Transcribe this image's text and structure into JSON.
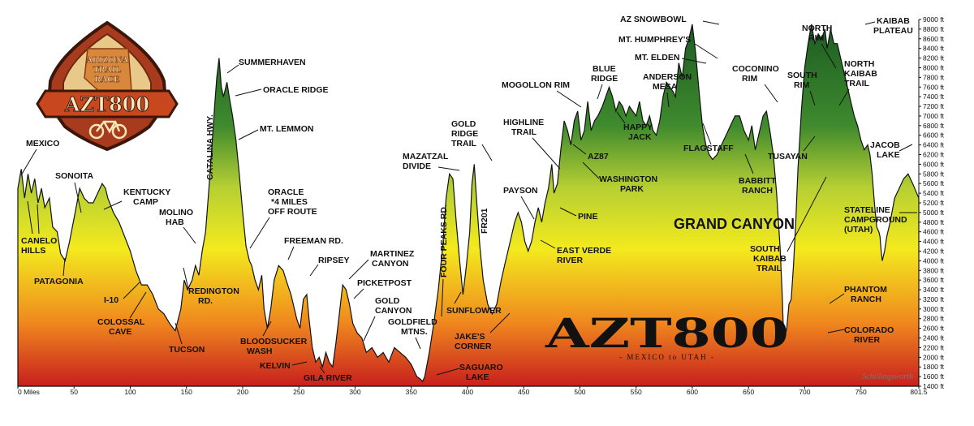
{
  "chart_data": {
    "type": "area",
    "title": "AZT800",
    "subtitle": "- MEXICO to UTAH -",
    "credit": "Schillingsworth",
    "x_unit_label": "Miles",
    "y_unit": "ft",
    "xlim": [
      0,
      801.5
    ],
    "ylim": [
      1400,
      9000
    ],
    "y_tick_step": 200,
    "x_ticks": [
      0,
      50,
      100,
      150,
      200,
      250,
      300,
      350,
      400,
      450,
      500,
      550,
      600,
      650,
      700,
      750,
      801.5
    ],
    "x_tick_labels": [
      "0 Miles",
      "50",
      "100",
      "150",
      "200",
      "250",
      "300",
      "350",
      "400",
      "450",
      "500",
      "550",
      "600",
      "650",
      "700",
      "750",
      "801.5"
    ],
    "fill_gradient": [
      "#1c5c22",
      "#3f8a2e",
      "#b6cf33",
      "#f3ea1e",
      "#f08a1e",
      "#c81f1e"
    ],
    "profile": [
      [
        0,
        5500
      ],
      [
        3,
        5900
      ],
      [
        6,
        5300
      ],
      [
        9,
        5800
      ],
      [
        12,
        5400
      ],
      [
        15,
        5700
      ],
      [
        18,
        5200
      ],
      [
        21,
        5500
      ],
      [
        24,
        5100
      ],
      [
        28,
        5300
      ],
      [
        31,
        4700
      ],
      [
        35,
        4600
      ],
      [
        38,
        4150
      ],
      [
        42,
        4000
      ],
      [
        46,
        4400
      ],
      [
        51,
        5000
      ],
      [
        55,
        5500
      ],
      [
        59,
        5300
      ],
      [
        63,
        5200
      ],
      [
        67,
        5200
      ],
      [
        71,
        5400
      ],
      [
        75,
        5600
      ],
      [
        78,
        5500
      ],
      [
        80,
        5300
      ],
      [
        85,
        5000
      ],
      [
        90,
        4800
      ],
      [
        95,
        4500
      ],
      [
        100,
        4200
      ],
      [
        105,
        3800
      ],
      [
        110,
        3500
      ],
      [
        115,
        3500
      ],
      [
        120,
        3300
      ],
      [
        125,
        3000
      ],
      [
        130,
        2900
      ],
      [
        135,
        2700
      ],
      [
        140,
        2550
      ],
      [
        145,
        3000
      ],
      [
        148,
        3600
      ],
      [
        151,
        3400
      ],
      [
        155,
        3600
      ],
      [
        158,
        3900
      ],
      [
        161,
        3700
      ],
      [
        164,
        4200
      ],
      [
        167,
        4600
      ],
      [
        170,
        5500
      ],
      [
        173,
        6500
      ],
      [
        175,
        7200
      ],
      [
        177,
        7800
      ],
      [
        179,
        8200
      ],
      [
        181,
        7600
      ],
      [
        183,
        7400
      ],
      [
        186,
        7700
      ],
      [
        188,
        7400
      ],
      [
        191,
        7000
      ],
      [
        194,
        6500
      ],
      [
        197,
        5800
      ],
      [
        200,
        5000
      ],
      [
        203,
        4300
      ],
      [
        206,
        4000
      ],
      [
        208,
        3900
      ],
      [
        211,
        3600
      ],
      [
        214,
        3400
      ],
      [
        217,
        3700
      ],
      [
        219,
        3000
      ],
      [
        222,
        2600
      ],
      [
        225,
        3000
      ],
      [
        228,
        3600
      ],
      [
        232,
        3900
      ],
      [
        236,
        3800
      ],
      [
        240,
        3500
      ],
      [
        243,
        3300
      ],
      [
        245,
        3100
      ],
      [
        248,
        2800
      ],
      [
        251,
        2600
      ],
      [
        254,
        3200
      ],
      [
        257,
        3300
      ],
      [
        259,
        2800
      ],
      [
        262,
        2200
      ],
      [
        265,
        1900
      ],
      [
        268,
        2000
      ],
      [
        271,
        1800
      ],
      [
        274,
        2100
      ],
      [
        277,
        1900
      ],
      [
        280,
        1800
      ],
      [
        283,
        2300
      ],
      [
        286,
        2900
      ],
      [
        289,
        3500
      ],
      [
        292,
        3400
      ],
      [
        295,
        3100
      ],
      [
        298,
        2700
      ],
      [
        302,
        2500
      ],
      [
        306,
        2400
      ],
      [
        310,
        2100
      ],
      [
        315,
        2200
      ],
      [
        320,
        2000
      ],
      [
        325,
        2100
      ],
      [
        330,
        1900
      ],
      [
        335,
        2200
      ],
      [
        340,
        2100
      ],
      [
        345,
        2000
      ],
      [
        350,
        1850
      ],
      [
        355,
        1600
      ],
      [
        358,
        1550
      ],
      [
        360,
        1500
      ],
      [
        362,
        1600
      ],
      [
        366,
        2100
      ],
      [
        370,
        2700
      ],
      [
        374,
        3400
      ],
      [
        378,
        4300
      ],
      [
        381,
        5300
      ],
      [
        384,
        5800
      ],
      [
        387,
        5700
      ],
      [
        390,
        4800
      ],
      [
        393,
        4000
      ],
      [
        396,
        3300
      ],
      [
        399,
        3900
      ],
      [
        402,
        4600
      ],
      [
        404,
        5600
      ],
      [
        406,
        6000
      ],
      [
        408,
        5300
      ],
      [
        411,
        4300
      ],
      [
        414,
        3600
      ],
      [
        418,
        3100
      ],
      [
        422,
        2900
      ],
      [
        426,
        3100
      ],
      [
        430,
        3600
      ],
      [
        434,
        4000
      ],
      [
        438,
        4400
      ],
      [
        442,
        4800
      ],
      [
        445,
        5000
      ],
      [
        448,
        4800
      ],
      [
        451,
        4400
      ],
      [
        454,
        4200
      ],
      [
        457,
        4400
      ],
      [
        460,
        4800
      ],
      [
        463,
        5100
      ],
      [
        466,
        4800
      ],
      [
        469,
        5200
      ],
      [
        472,
        5500
      ],
      [
        475,
        6000
      ],
      [
        477,
        5400
      ],
      [
        480,
        5600
      ],
      [
        483,
        6300
      ],
      [
        486,
        6900
      ],
      [
        489,
        6700
      ],
      [
        492,
        6400
      ],
      [
        495,
        6900
      ],
      [
        498,
        7100
      ],
      [
        501,
        6500
      ],
      [
        504,
        6700
      ],
      [
        507,
        7300
      ],
      [
        510,
        6700
      ],
      [
        513,
        6900
      ],
      [
        516,
        7000
      ],
      [
        520,
        7200
      ],
      [
        523,
        7400
      ],
      [
        526,
        7600
      ],
      [
        529,
        7400
      ],
      [
        532,
        7100
      ],
      [
        535,
        7300
      ],
      [
        538,
        7200
      ],
      [
        541,
        7000
      ],
      [
        544,
        7200
      ],
      [
        547,
        7100
      ],
      [
        550,
        7000
      ],
      [
        553,
        7300
      ],
      [
        556,
        6900
      ],
      [
        559,
        6800
      ],
      [
        562,
        7000
      ],
      [
        565,
        6700
      ],
      [
        568,
        6600
      ],
      [
        571,
        6900
      ],
      [
        574,
        7400
      ],
      [
        577,
        7700
      ],
      [
        580,
        7600
      ],
      [
        583,
        7500
      ],
      [
        585,
        7400
      ],
      [
        588,
        8100
      ],
      [
        591,
        7800
      ],
      [
        594,
        8400
      ],
      [
        597,
        8600
      ],
      [
        600,
        8900
      ],
      [
        603,
        8300
      ],
      [
        606,
        7500
      ],
      [
        609,
        6800
      ],
      [
        612,
        6400
      ],
      [
        615,
        6200
      ],
      [
        618,
        6100
      ],
      [
        622,
        6200
      ],
      [
        626,
        6400
      ],
      [
        630,
        6600
      ],
      [
        634,
        6800
      ],
      [
        638,
        7000
      ],
      [
        642,
        7000
      ],
      [
        646,
        6700
      ],
      [
        650,
        6500
      ],
      [
        653,
        6800
      ],
      [
        656,
        6300
      ],
      [
        660,
        6700
      ],
      [
        663,
        7000
      ],
      [
        666,
        7100
      ],
      [
        669,
        6700
      ],
      [
        672,
        6200
      ],
      [
        675,
        5400
      ],
      [
        678,
        4300
      ],
      [
        680,
        3300
      ],
      [
        681,
        2600
      ],
      [
        682,
        2400
      ],
      [
        684,
        2600
      ],
      [
        686,
        3100
      ],
      [
        688,
        3200
      ],
      [
        690,
        3900
      ],
      [
        692,
        4800
      ],
      [
        694,
        5900
      ],
      [
        697,
        7100
      ],
      [
        700,
        8000
      ],
      [
        703,
        8500
      ],
      [
        706,
        8900
      ],
      [
        709,
        8500
      ],
      [
        712,
        8700
      ],
      [
        715,
        8600
      ],
      [
        718,
        8800
      ],
      [
        720,
        8400
      ],
      [
        723,
        8800
      ],
      [
        726,
        8500
      ],
      [
        729,
        8500
      ],
      [
        732,
        8200
      ],
      [
        735,
        7900
      ],
      [
        738,
        7600
      ],
      [
        741,
        7300
      ],
      [
        744,
        7000
      ],
      [
        747,
        6800
      ],
      [
        750,
        6500
      ],
      [
        753,
        6300
      ],
      [
        756,
        6400
      ],
      [
        758,
        6200
      ],
      [
        760,
        5800
      ],
      [
        762,
        5200
      ],
      [
        764,
        4700
      ],
      [
        766,
        4600
      ],
      [
        767,
        4500
      ],
      [
        768,
        4200
      ],
      [
        769,
        4000
      ],
      [
        770,
        4100
      ],
      [
        771,
        4200
      ],
      [
        773,
        4500
      ],
      [
        776,
        4800
      ],
      [
        780,
        5300
      ],
      [
        784,
        5500
      ],
      [
        788,
        5700
      ],
      [
        792,
        5800
      ],
      [
        796,
        5600
      ],
      [
        801.5,
        5300
      ]
    ],
    "annotations": [
      {
        "text": "MEXICO",
        "mile": 3
      },
      {
        "text": "CANELO HILLS",
        "mile": 25
      },
      {
        "text": "PATAGONIA",
        "mile": 42
      },
      {
        "text": "SONOITA",
        "mile": 55
      },
      {
        "text": "KENTUCKY CAMP",
        "mile": 78
      },
      {
        "text": "I-10",
        "mile": 110
      },
      {
        "text": "COLOSSAL CAVE",
        "mile": 120
      },
      {
        "text": "MOLINO HAB",
        "mile": 158
      },
      {
        "text": "TUCSON",
        "mile": 140
      },
      {
        "text": "REDINGTON RD.",
        "mile": 161
      },
      {
        "text": "CATALINA HWY.",
        "mile": 170
      },
      {
        "text": "SUMMERHAVEN",
        "mile": 179
      },
      {
        "text": "ORACLE RIDGE",
        "mile": 186
      },
      {
        "text": "MT. LEMMON",
        "mile": 191
      },
      {
        "text": "ORACLE *4 MILES OFF ROUTE",
        "mile": 203
      },
      {
        "text": "FREEMAN RD.",
        "mile": 232
      },
      {
        "text": "BLOODSUCKER WASH",
        "mile": 222
      },
      {
        "text": "RIPSEY",
        "mile": 254
      },
      {
        "text": "KELVIN",
        "mile": 262
      },
      {
        "text": "GILA RIVER",
        "mile": 271
      },
      {
        "text": "MARTINEZ CANYON",
        "mile": 289
      },
      {
        "text": "PICKETPOST",
        "mile": 306
      },
      {
        "text": "GOLD CANYON",
        "mile": 320
      },
      {
        "text": "GOLDFIELD MTNS.",
        "mile": 340
      },
      {
        "text": "FOUR PEAKS RD.",
        "mile": 366
      },
      {
        "text": "SAGUARO LAKE",
        "mile": 360
      },
      {
        "text": "MAZATZAL DIVIDE",
        "mile": 384
      },
      {
        "text": "GOLD RIDGE TRAIL",
        "mile": 406
      },
      {
        "text": "FR201",
        "mile": 396
      },
      {
        "text": "SUNFLOWER",
        "mile": 378
      },
      {
        "text": "JAKE'S CORNER",
        "mile": 426
      },
      {
        "text": "PAYSON",
        "mile": 451
      },
      {
        "text": "EAST VERDE RIVER",
        "mile": 466
      },
      {
        "text": "PINE",
        "mile": 475
      },
      {
        "text": "HIGHLINE TRAIL",
        "mile": 483
      },
      {
        "text": "MOGOLLON RIM",
        "mile": 498
      },
      {
        "text": "AZ87",
        "mile": 495
      },
      {
        "text": "BLUE RIDGE",
        "mile": 513
      },
      {
        "text": "WASHINGTON PARK",
        "mile": 504
      },
      {
        "text": "HAPPY JACK",
        "mile": 532
      },
      {
        "text": "ANDERSON MESA",
        "mile": 565
      },
      {
        "text": "MT. ELDEN",
        "mile": 588
      },
      {
        "text": "MT. HUMPHREY'S",
        "mile": 597
      },
      {
        "text": "AZ SNOWBOWL",
        "mile": 600
      },
      {
        "text": "FLAGSTAFF",
        "mile": 571
      },
      {
        "text": "COCONINO RIM",
        "mile": 638
      },
      {
        "text": "BABBITT RANCH",
        "mile": 618
      },
      {
        "text": "TUSAYAN",
        "mile": 660
      },
      {
        "text": "SOUTH RIM",
        "mile": 666
      },
      {
        "text": "GRAND CANYON",
        "mile": 681
      },
      {
        "text": "SOUTH KAIBAB TRAIL",
        "mile": 676
      },
      {
        "text": "PHANTOM RANCH",
        "mile": 682
      },
      {
        "text": "COLORADO RIVER",
        "mile": 682
      },
      {
        "text": "NORTH RIM",
        "mile": 700
      },
      {
        "text": "NORTH KAIBAB TRAIL",
        "mile": 697
      },
      {
        "text": "KAIBAB PLATEAU",
        "mile": 718
      },
      {
        "text": "JACOB LAKE",
        "mile": 760
      },
      {
        "text": "STATELINE CAMPGROUND (UTAH)",
        "mile": 801.5
      }
    ]
  },
  "logo": {
    "line1": "ARIZONA",
    "line2": "TRAIL",
    "line3": "RACE",
    "name": "AZT800"
  }
}
